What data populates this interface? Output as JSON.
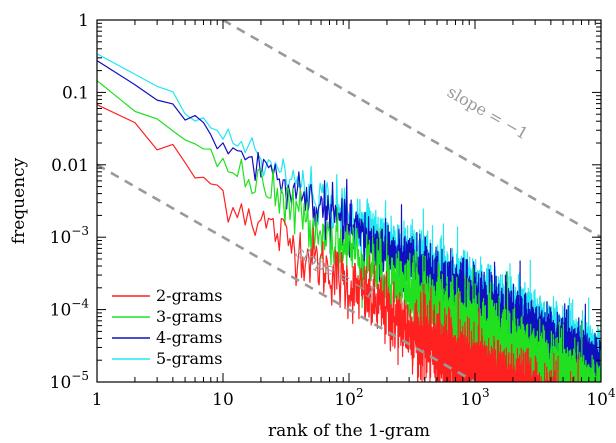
{
  "chart_data": {
    "type": "line",
    "xscale": "log",
    "yscale": "log",
    "xlim": [
      1,
      10000
    ],
    "ylim": [
      1e-05,
      1
    ],
    "xlabel": "rank of the 1-gram",
    "ylabel": "frequency",
    "x_ticks": [
      {
        "value": 1,
        "label": "1"
      },
      {
        "value": 10,
        "label": "10"
      },
      {
        "value": 100,
        "label": "10",
        "exp": "2"
      },
      {
        "value": 1000,
        "label": "10",
        "exp": "3"
      },
      {
        "value": 10000,
        "label": "10",
        "exp": "4"
      }
    ],
    "y_ticks": [
      {
        "value": 1,
        "label": "1"
      },
      {
        "value": 0.1,
        "label": "0.1"
      },
      {
        "value": 0.01,
        "label": "0.01"
      },
      {
        "value": 0.001,
        "label": "10",
        "exp": "−3"
      },
      {
        "value": 0.0001,
        "label": "10",
        "exp": "−4"
      },
      {
        "value": 1e-05,
        "label": "10",
        "exp": "−5"
      }
    ],
    "legend_position": "bottom-left",
    "grid": false,
    "series": [
      {
        "name": "2-grams",
        "color": "#ff2020",
        "a": 0.072,
        "alpha": 1.26,
        "noise": 0.55
      },
      {
        "name": "3-grams",
        "color": "#20e020",
        "a": 0.17,
        "alpha": 1.2,
        "noise": 0.5
      },
      {
        "name": "4-grams",
        "color": "#1010c0",
        "a": 0.28,
        "alpha": 1.15,
        "noise": 0.45
      },
      {
        "name": "5-grams",
        "color": "#20e8f0",
        "a": 0.36,
        "alpha": 1.13,
        "noise": 0.42
      }
    ],
    "reference_lines": [
      {
        "label": "slope = −1",
        "slope": -1,
        "x_start": 10,
        "y_start": 1,
        "x_end": 10000,
        "y_end": 0.001,
        "color": "#9a9a9a",
        "dash": "dashed",
        "label_at_x": 1200,
        "label_at_y": 0.045
      },
      {
        "label": "slope = −1",
        "slope": -1,
        "x_start": 1,
        "y_start": 0.01,
        "x_end": 1000,
        "y_end": 1e-05,
        "color": "#9a9a9a",
        "dash": "dashed",
        "label_at_x": 75,
        "label_at_y": 0.00028
      }
    ]
  }
}
